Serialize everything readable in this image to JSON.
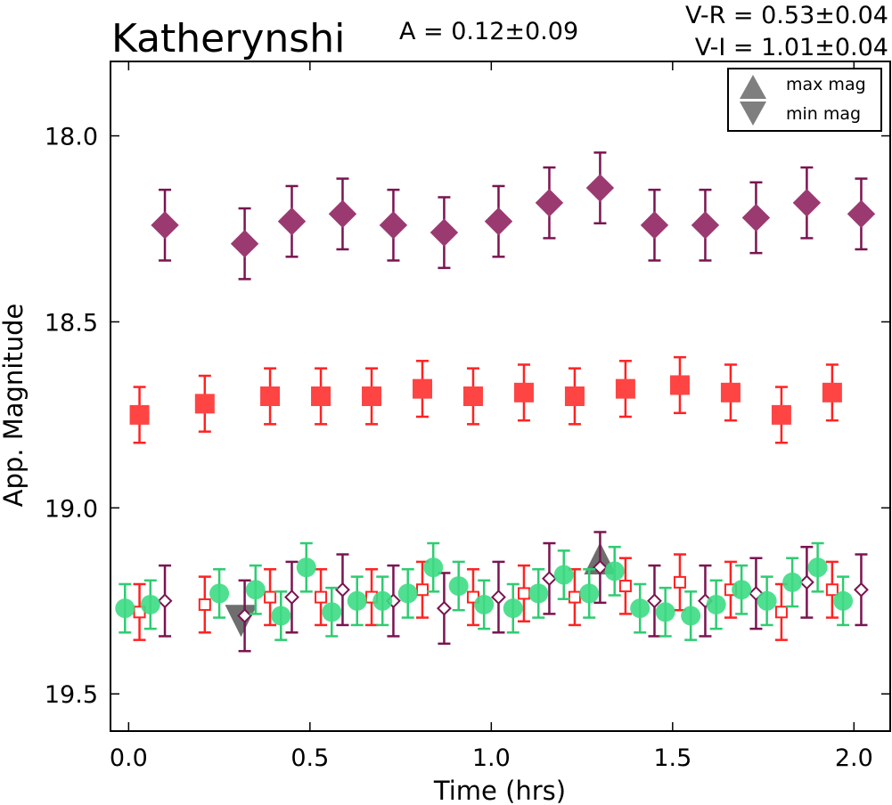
{
  "chart_data": {
    "type": "scatter",
    "title": "Katherynshi",
    "annotations": {
      "amplitude": "A  = 0.12±0.09",
      "v_r": "V-R = 0.53±0.04",
      "v_i": "V-I  = 1.01±0.04"
    },
    "xlabel": "Time (hrs)",
    "ylabel": "App. Magnitude",
    "xlim": [
      -0.05,
      2.1
    ],
    "ylim": [
      19.6,
      17.8
    ],
    "y_inverted": true,
    "x_ticks": [
      "0.0",
      "0.5",
      "1.0",
      "1.5",
      "2.0"
    ],
    "y_ticks": [
      "18.0",
      "18.5",
      "19.0",
      "19.5"
    ],
    "grid": false,
    "legend": {
      "position": "top-right",
      "entries": [
        {
          "label": "max mag",
          "marker": "triangle-up",
          "color": "#7f7f7f"
        },
        {
          "label": "min mag",
          "marker": "triangle-down",
          "color": "#7f7f7f"
        }
      ]
    },
    "colors": {
      "V": "#2ecc71",
      "R": "#ff2222",
      "I": "#7a1450"
    },
    "series": [
      {
        "key": "I",
        "marker": "diamond-filled",
        "err": 0.095,
        "x": [
          0.1,
          0.32,
          0.45,
          0.59,
          0.73,
          0.87,
          1.02,
          1.16,
          1.3,
          1.45,
          1.59,
          1.73,
          1.87,
          2.02
        ],
        "y": [
          18.24,
          18.29,
          18.23,
          18.21,
          18.24,
          18.26,
          18.23,
          18.18,
          18.14,
          18.24,
          18.24,
          18.22,
          18.18,
          18.21
        ]
      },
      {
        "key": "R",
        "marker": "square-filled",
        "err": 0.075,
        "x": [
          0.03,
          0.21,
          0.39,
          0.53,
          0.67,
          0.81,
          0.95,
          1.09,
          1.23,
          1.37,
          1.52,
          1.66,
          1.8,
          1.94
        ],
        "y": [
          18.75,
          18.72,
          18.7,
          18.7,
          18.7,
          18.68,
          18.7,
          18.69,
          18.7,
          18.68,
          18.67,
          18.69,
          18.75,
          18.69
        ]
      },
      {
        "key": "I",
        "marker": "diamond-open",
        "err": 0.095,
        "x": [
          0.1,
          0.32,
          0.45,
          0.59,
          0.73,
          0.87,
          1.02,
          1.16,
          1.3,
          1.45,
          1.59,
          1.73,
          1.87,
          2.02
        ],
        "y": [
          19.25,
          19.29,
          19.24,
          19.22,
          19.25,
          19.27,
          19.24,
          19.19,
          19.16,
          19.25,
          19.25,
          19.23,
          19.2,
          19.22
        ]
      },
      {
        "key": "R",
        "marker": "square-open",
        "err": 0.075,
        "x": [
          0.03,
          0.21,
          0.39,
          0.53,
          0.67,
          0.81,
          0.95,
          1.09,
          1.23,
          1.37,
          1.52,
          1.66,
          1.8,
          1.94
        ],
        "y": [
          19.28,
          19.26,
          19.24,
          19.24,
          19.24,
          19.22,
          19.24,
          19.23,
          19.24,
          19.21,
          19.2,
          19.22,
          19.28,
          19.22
        ]
      },
      {
        "key": "V",
        "marker": "circle-filled",
        "err": 0.065,
        "x": [
          -0.01,
          0.06,
          0.25,
          0.35,
          0.42,
          0.49,
          0.56,
          0.63,
          0.7,
          0.77,
          0.84,
          0.91,
          0.98,
          1.06,
          1.13,
          1.2,
          1.27,
          1.34,
          1.41,
          1.48,
          1.55,
          1.62,
          1.69,
          1.76,
          1.83,
          1.9,
          1.97
        ],
        "y": [
          19.27,
          19.26,
          19.23,
          19.22,
          19.29,
          19.16,
          19.28,
          19.25,
          19.25,
          19.23,
          19.16,
          19.21,
          19.26,
          19.27,
          19.23,
          19.18,
          19.23,
          19.17,
          19.27,
          19.28,
          19.29,
          19.26,
          19.22,
          19.25,
          19.2,
          19.16,
          19.25
        ]
      }
    ],
    "extrema": [
      {
        "type": "min mag",
        "x": 0.31,
        "y": 19.28
      },
      {
        "type": "max mag",
        "x": 1.3,
        "y": 19.16
      }
    ]
  }
}
